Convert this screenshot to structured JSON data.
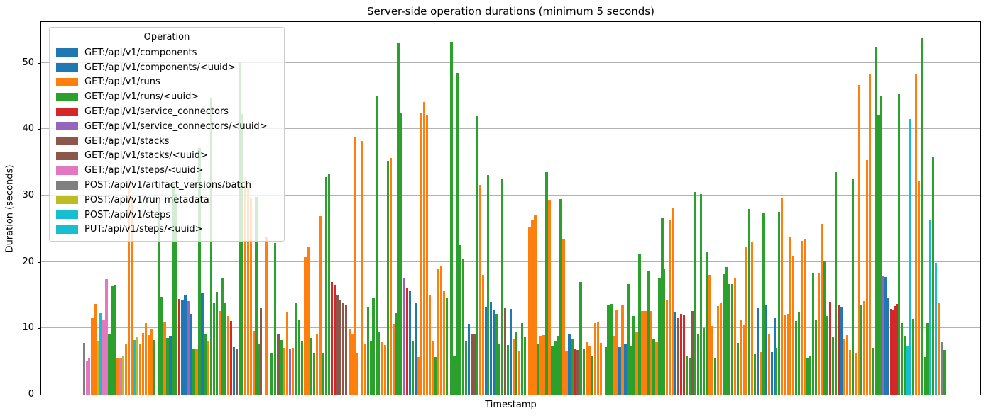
{
  "chart_data": {
    "type": "bar",
    "title": "Server-side operation durations (minimum 5 seconds)",
    "xlabel": "Timestamp",
    "ylabel": "Duration (seconds)",
    "yticks": [
      0,
      10,
      20,
      30,
      40,
      50
    ],
    "ylim": [
      0,
      56.4
    ],
    "grid": "horizontal",
    "x_axis_tick_labels": "none",
    "legend_position": "upper-left",
    "legend_title": "Operation",
    "legend_items": [
      {
        "label": "GET:/api/v1/components",
        "color": "#1f77b4"
      },
      {
        "label": "GET:/api/v1/components/<uuid>",
        "color": "#1f77b4"
      },
      {
        "label": "GET:/api/v1/runs",
        "color": "#ff7f0e"
      },
      {
        "label": "GET:/api/v1/runs/<uuid>",
        "color": "#2ca02c"
      },
      {
        "label": "GET:/api/v1/service_connectors",
        "color": "#d62728"
      },
      {
        "label": "GET:/api/v1/service_connectors/<uuid>",
        "color": "#9467bd"
      },
      {
        "label": "GET:/api/v1/stacks",
        "color": "#8c564b"
      },
      {
        "label": "GET:/api/v1/stacks/<uuid>",
        "color": "#8c564b"
      },
      {
        "label": "GET:/api/v1/steps/<uuid>",
        "color": "#e377c2"
      },
      {
        "label": "POST:/api/v1/artifact_versions/batch",
        "color": "#7f7f7f"
      },
      {
        "label": "POST:/api/v1/run-metadata",
        "color": "#bcbd22"
      },
      {
        "label": "POST:/api/v1/steps",
        "color": "#17becf"
      },
      {
        "label": "PUT:/api/v1/steps/<uuid>",
        "color": "#17becf"
      }
    ],
    "palette": {
      "b": "#1f77b4",
      "o": "#ff7f0e",
      "g": "#2ca02c",
      "r": "#d62728",
      "pu": "#9467bd",
      "br": "#8c564b",
      "pk": "#e377c2",
      "gy": "#7f7f7f",
      "ol": "#bcbd22",
      "cy": "#17becf"
    },
    "bars_format": [
      "x_pixel",
      "duration_seconds",
      "color_key"
    ],
    "bars": [
      [
        117.3,
        7.8,
        "gy"
      ],
      [
        121.3,
        5.1,
        "pk"
      ],
      [
        124.7,
        5.4,
        "pk"
      ],
      [
        129,
        11.5,
        "o"
      ],
      [
        133,
        13.7,
        "o"
      ],
      [
        137,
        8,
        "ol"
      ],
      [
        141,
        12.3,
        "cy"
      ],
      [
        145,
        11.2,
        "pk"
      ],
      [
        149,
        17.4,
        "pk"
      ],
      [
        153,
        9.2,
        "g"
      ],
      [
        157,
        16.3,
        "g"
      ],
      [
        160.7,
        16.5,
        "g"
      ],
      [
        165,
        5.4,
        "o"
      ],
      [
        169,
        5.5,
        "pk"
      ],
      [
        172.7,
        5.9,
        "ol"
      ],
      [
        176.3,
        7.6,
        "o"
      ],
      [
        180.3,
        32.4,
        "o"
      ],
      [
        184.3,
        29.6,
        "o"
      ],
      [
        188.3,
        8.2,
        "cy"
      ],
      [
        192.3,
        8.7,
        "ol"
      ],
      [
        196.3,
        7.6,
        "o"
      ],
      [
        200.3,
        9.3,
        "o"
      ],
      [
        204.3,
        10.8,
        "o"
      ],
      [
        208.3,
        9,
        "o"
      ],
      [
        212.3,
        9.9,
        "o"
      ],
      [
        216.3,
        8.2,
        "g"
      ],
      [
        223,
        28.8,
        "g"
      ],
      [
        227,
        14.7,
        "g"
      ],
      [
        231,
        11,
        "o"
      ],
      [
        235,
        8.5,
        "g"
      ],
      [
        239,
        8.9,
        "b"
      ],
      [
        243,
        31.8,
        "g"
      ],
      [
        247,
        30.2,
        "g"
      ],
      [
        251.7,
        14.4,
        "r"
      ],
      [
        256,
        14.2,
        "b"
      ],
      [
        260,
        15,
        "b"
      ],
      [
        264,
        14.1,
        "pu"
      ],
      [
        268,
        12.2,
        "b"
      ],
      [
        272,
        6.9,
        "g"
      ],
      [
        276,
        6.8,
        "o"
      ],
      [
        280,
        37.1,
        "g"
      ],
      [
        284,
        15.4,
        "b"
      ],
      [
        288,
        9.1,
        "g"
      ],
      [
        292,
        8,
        "o"
      ],
      [
        296.7,
        44.7,
        "g"
      ],
      [
        300.7,
        13.9,
        "g"
      ],
      [
        304.7,
        15.5,
        "g"
      ],
      [
        308.7,
        12.6,
        "o"
      ],
      [
        312.7,
        17.5,
        "g"
      ],
      [
        316.7,
        13.9,
        "g"
      ],
      [
        320.7,
        11.8,
        "o"
      ],
      [
        324.7,
        11.1,
        "r"
      ],
      [
        328.7,
        7.1,
        "b"
      ],
      [
        332.7,
        6.9,
        "br"
      ],
      [
        336.3,
        50.2,
        "g"
      ],
      [
        340.3,
        42.3,
        "g"
      ],
      [
        344.3,
        32.4,
        "o"
      ],
      [
        348.3,
        31.2,
        "o"
      ],
      [
        352.3,
        29.7,
        "o"
      ],
      [
        356.3,
        9.6,
        "o"
      ],
      [
        360,
        29.8,
        "g"
      ],
      [
        364,
        7.6,
        "g"
      ],
      [
        366.7,
        13,
        "br"
      ],
      [
        374,
        23.8,
        "o"
      ],
      [
        382,
        6.3,
        "g"
      ],
      [
        386.7,
        22.8,
        "g"
      ],
      [
        391,
        9.2,
        "br"
      ],
      [
        395,
        8.2,
        "g"
      ],
      [
        399,
        7,
        "o"
      ],
      [
        403.3,
        12.5,
        "o"
      ],
      [
        407.7,
        6.8,
        "pu"
      ],
      [
        411.7,
        7,
        "o"
      ],
      [
        415.7,
        13.9,
        "g"
      ],
      [
        420.7,
        11.2,
        "g"
      ],
      [
        424.7,
        8.1,
        "g"
      ],
      [
        429,
        20.7,
        "o"
      ],
      [
        433.3,
        22.2,
        "o"
      ],
      [
        437.7,
        8.5,
        "g"
      ],
      [
        441.7,
        6.3,
        "g"
      ],
      [
        445.7,
        9.2,
        "o"
      ],
      [
        450,
        26.9,
        "o"
      ],
      [
        454.3,
        6.3,
        "g"
      ],
      [
        458.3,
        32.8,
        "g"
      ],
      [
        462.3,
        33.2,
        "g"
      ],
      [
        466.7,
        17,
        "r"
      ],
      [
        470.7,
        16.5,
        "r"
      ],
      [
        474.7,
        15,
        "br"
      ],
      [
        478.7,
        14.2,
        "br"
      ],
      [
        482.7,
        13.8,
        "br"
      ],
      [
        486.7,
        13.6,
        "br"
      ],
      [
        492.3,
        9.9,
        "o"
      ],
      [
        495.7,
        9.2,
        "o"
      ],
      [
        499,
        38.7,
        "o"
      ],
      [
        502.7,
        6.3,
        "o"
      ],
      [
        509,
        38.2,
        "o"
      ],
      [
        513.3,
        7.6,
        "o"
      ],
      [
        517.7,
        13.2,
        "g"
      ],
      [
        521.7,
        8.1,
        "g"
      ],
      [
        525,
        14.5,
        "g"
      ],
      [
        529.3,
        45,
        "g"
      ],
      [
        533.3,
        9.4,
        "g"
      ],
      [
        537.3,
        7.9,
        "o"
      ],
      [
        541.3,
        7.5,
        "o"
      ],
      [
        545.3,
        35.2,
        "g"
      ],
      [
        549.3,
        35.7,
        "o"
      ],
      [
        553.3,
        10.7,
        "o"
      ],
      [
        556.7,
        12.3,
        "g"
      ],
      [
        560,
        52.9,
        "g"
      ],
      [
        564,
        42.4,
        "g"
      ],
      [
        568.3,
        17.6,
        "pu"
      ],
      [
        572.3,
        16,
        "r"
      ],
      [
        576.3,
        15.6,
        "b"
      ],
      [
        580.3,
        8.1,
        "g"
      ],
      [
        584.3,
        13.8,
        "b"
      ],
      [
        588.3,
        5.7,
        "o"
      ],
      [
        592.3,
        42.5,
        "o"
      ],
      [
        596.7,
        44.1,
        "o"
      ],
      [
        600.7,
        42.1,
        "o"
      ],
      [
        604.7,
        15,
        "o"
      ],
      [
        608.7,
        8.1,
        "o"
      ],
      [
        612.7,
        5.7,
        "g"
      ],
      [
        616.7,
        19,
        "o"
      ],
      [
        620.7,
        19.4,
        "o"
      ],
      [
        624.7,
        15.6,
        "o"
      ],
      [
        628.7,
        14.6,
        "g"
      ],
      [
        635,
        53.2,
        "g"
      ],
      [
        639,
        5.9,
        "g"
      ],
      [
        643.3,
        48.5,
        "g"
      ],
      [
        647.3,
        22.5,
        "g"
      ],
      [
        651.3,
        20.5,
        "g"
      ],
      [
        655.3,
        8.1,
        "g"
      ],
      [
        659.3,
        10.6,
        "b"
      ],
      [
        663.3,
        9.2,
        "br"
      ],
      [
        667.3,
        9.1,
        "br"
      ],
      [
        671.3,
        41.9,
        "g"
      ],
      [
        675.3,
        31.6,
        "o"
      ],
      [
        679.3,
        18,
        "o"
      ],
      [
        683.3,
        13.2,
        "b"
      ],
      [
        686.7,
        33.1,
        "g"
      ],
      [
        690.7,
        14,
        "b"
      ],
      [
        694.7,
        12.7,
        "b"
      ],
      [
        698.7,
        12.2,
        "g"
      ],
      [
        702.7,
        7.6,
        "g"
      ],
      [
        706.7,
        32.5,
        "g"
      ],
      [
        710.7,
        13,
        "br"
      ],
      [
        714.7,
        7.5,
        "g"
      ],
      [
        718.7,
        12.9,
        "b"
      ],
      [
        722.7,
        8.4,
        "o"
      ],
      [
        726.7,
        9.4,
        "g"
      ],
      [
        730.7,
        6.6,
        "o"
      ],
      [
        734.7,
        10.8,
        "g"
      ],
      [
        738.7,
        8.8,
        "g"
      ],
      [
        745,
        25.2,
        "o"
      ],
      [
        749,
        26.3,
        "o"
      ],
      [
        753,
        27,
        "o"
      ],
      [
        757,
        7.6,
        "g"
      ],
      [
        761,
        8.9,
        "o"
      ],
      [
        765,
        9,
        "o"
      ],
      [
        769,
        33.5,
        "g"
      ],
      [
        773,
        29.4,
        "o"
      ],
      [
        777,
        7.4,
        "g"
      ],
      [
        781,
        8.1,
        "g"
      ],
      [
        785,
        8.9,
        "g"
      ],
      [
        789,
        29.5,
        "g"
      ],
      [
        793,
        23.5,
        "o"
      ],
      [
        797,
        6.5,
        "o"
      ],
      [
        801,
        9.2,
        "b"
      ],
      [
        805,
        8.4,
        "g"
      ],
      [
        809,
        6.8,
        "r"
      ],
      [
        813,
        6.7,
        "br"
      ],
      [
        817,
        17,
        "g"
      ],
      [
        821.7,
        6.8,
        "g"
      ],
      [
        825.7,
        7.9,
        "o"
      ],
      [
        829.7,
        7.3,
        "o"
      ],
      [
        833.7,
        5.9,
        "g"
      ],
      [
        837.7,
        10.8,
        "o"
      ],
      [
        841.7,
        10.9,
        "o"
      ],
      [
        845.7,
        7.8,
        "o"
      ],
      [
        852.7,
        7.1,
        "g"
      ],
      [
        856,
        13.5,
        "g"
      ],
      [
        860,
        13.7,
        "g"
      ],
      [
        864,
        8.9,
        "o"
      ],
      [
        868,
        12.7,
        "o"
      ],
      [
        872,
        7.2,
        "b"
      ],
      [
        876,
        13.6,
        "o"
      ],
      [
        880,
        7.6,
        "b"
      ],
      [
        884,
        16.7,
        "g"
      ],
      [
        888,
        7.3,
        "g"
      ],
      [
        892,
        11.9,
        "g"
      ],
      [
        896,
        9.4,
        "o"
      ],
      [
        900,
        21.1,
        "g"
      ],
      [
        904,
        12.6,
        "o"
      ],
      [
        908,
        12.6,
        "o"
      ],
      [
        912,
        18.6,
        "g"
      ],
      [
        916,
        12.6,
        "o"
      ],
      [
        920,
        8.3,
        "g"
      ],
      [
        924,
        7.9,
        "o"
      ],
      [
        928,
        17.5,
        "g"
      ],
      [
        932,
        26.7,
        "g"
      ],
      [
        934.7,
        18.9,
        "g"
      ],
      [
        938.3,
        14.3,
        "o"
      ],
      [
        942.3,
        26.4,
        "o"
      ],
      [
        946.3,
        28.1,
        "o"
      ],
      [
        950.3,
        12.5,
        "b"
      ],
      [
        954.3,
        11.5,
        "br"
      ],
      [
        958.3,
        12.2,
        "r"
      ],
      [
        962.3,
        12,
        "r"
      ],
      [
        966.3,
        5.8,
        "g"
      ],
      [
        970.3,
        5.6,
        "g"
      ],
      [
        974.3,
        12.6,
        "br"
      ],
      [
        978.3,
        30.5,
        "g"
      ],
      [
        982.3,
        9.1,
        "g"
      ],
      [
        986.3,
        30.2,
        "g"
      ],
      [
        990.3,
        10,
        "g"
      ],
      [
        994.3,
        21.4,
        "g"
      ],
      [
        998.3,
        18,
        "o"
      ],
      [
        1002.3,
        10.4,
        "o"
      ],
      [
        1006.3,
        5.6,
        "g"
      ],
      [
        1010.3,
        13.3,
        "o"
      ],
      [
        1014.3,
        13.8,
        "o"
      ],
      [
        1018.3,
        18.1,
        "g"
      ],
      [
        1022.3,
        19.2,
        "g"
      ],
      [
        1026.3,
        16.6,
        "g"
      ],
      [
        1030.3,
        16.7,
        "g"
      ],
      [
        1034.3,
        17.6,
        "o"
      ],
      [
        1038.3,
        7.8,
        "g"
      ],
      [
        1042.3,
        11.3,
        "o"
      ],
      [
        1046.3,
        10.5,
        "o"
      ],
      [
        1050.3,
        22.2,
        "o"
      ],
      [
        1054.3,
        28,
        "g"
      ],
      [
        1058.3,
        23.1,
        "o"
      ],
      [
        1062.3,
        6.2,
        "g"
      ],
      [
        1066.3,
        13,
        "b"
      ],
      [
        1070.3,
        6.4,
        "o"
      ],
      [
        1074.3,
        27.3,
        "g"
      ],
      [
        1078.3,
        13.5,
        "b"
      ],
      [
        1082.3,
        9.1,
        "o"
      ],
      [
        1086.3,
        6.4,
        "b"
      ],
      [
        1090.3,
        11.5,
        "b"
      ],
      [
        1092.7,
        7,
        "g"
      ],
      [
        1096.7,
        27.5,
        "g"
      ],
      [
        1100.7,
        29.7,
        "o"
      ],
      [
        1104.7,
        12,
        "o"
      ],
      [
        1108.7,
        12.2,
        "o"
      ],
      [
        1112.7,
        23.8,
        "o"
      ],
      [
        1116.7,
        20.8,
        "o"
      ],
      [
        1120.7,
        11.1,
        "g"
      ],
      [
        1124.7,
        12.4,
        "g"
      ],
      [
        1128.7,
        23.2,
        "o"
      ],
      [
        1132.7,
        23.5,
        "o"
      ],
      [
        1136.7,
        5.5,
        "g"
      ],
      [
        1140.7,
        5.9,
        "g"
      ],
      [
        1144.7,
        18.3,
        "g"
      ],
      [
        1148.7,
        11.3,
        "g"
      ],
      [
        1152.7,
        18.3,
        "o"
      ],
      [
        1156.7,
        25.7,
        "o"
      ],
      [
        1160.7,
        20.1,
        "g"
      ],
      [
        1164.7,
        11.9,
        "g"
      ],
      [
        1168.7,
        14,
        "r"
      ],
      [
        1172.7,
        8.7,
        "g"
      ],
      [
        1176.7,
        33.5,
        "g"
      ],
      [
        1180.7,
        13.6,
        "r"
      ],
      [
        1184.7,
        13.2,
        "b"
      ],
      [
        1188.7,
        8.4,
        "o"
      ],
      [
        1192.7,
        9,
        "o"
      ],
      [
        1196.7,
        6.7,
        "o"
      ],
      [
        1200.7,
        32.6,
        "g"
      ],
      [
        1204.7,
        6.3,
        "o"
      ],
      [
        1208.7,
        46.6,
        "o"
      ],
      [
        1212.7,
        13.5,
        "g"
      ],
      [
        1216.7,
        14.1,
        "o"
      ],
      [
        1220.7,
        35.3,
        "o"
      ],
      [
        1224.7,
        48.2,
        "o"
      ],
      [
        1228.7,
        7,
        "g"
      ],
      [
        1232.7,
        52.3,
        "g"
      ],
      [
        1235.3,
        42.2,
        "g"
      ],
      [
        1238,
        42.1,
        "g"
      ],
      [
        1240.7,
        45,
        "g"
      ],
      [
        1243.3,
        17.9,
        "pu"
      ],
      [
        1246.7,
        17.7,
        "b"
      ],
      [
        1250.7,
        14.5,
        "b"
      ],
      [
        1254.7,
        12.9,
        "r"
      ],
      [
        1257.3,
        12.8,
        "r"
      ],
      [
        1260,
        13.3,
        "r"
      ],
      [
        1262.7,
        13.7,
        "r"
      ],
      [
        1265.7,
        45.2,
        "g"
      ],
      [
        1269.7,
        10.8,
        "g"
      ],
      [
        1273.7,
        8.9,
        "g"
      ],
      [
        1277.7,
        7.4,
        "cy"
      ],
      [
        1281.7,
        41.5,
        "cy"
      ],
      [
        1285.7,
        11.4,
        "g"
      ],
      [
        1289.7,
        48.4,
        "o"
      ],
      [
        1293.7,
        32.1,
        "o"
      ],
      [
        1297.7,
        53.8,
        "g"
      ],
      [
        1301.7,
        5.7,
        "g"
      ],
      [
        1305.7,
        10.8,
        "g"
      ],
      [
        1309.7,
        26.4,
        "cy"
      ],
      [
        1313.7,
        35.9,
        "g"
      ],
      [
        1317.7,
        19.9,
        "cy"
      ],
      [
        1321.7,
        13.9,
        "o"
      ],
      [
        1325.7,
        7.9,
        "gy"
      ],
      [
        1329.3,
        6.7,
        "g"
      ]
    ]
  }
}
